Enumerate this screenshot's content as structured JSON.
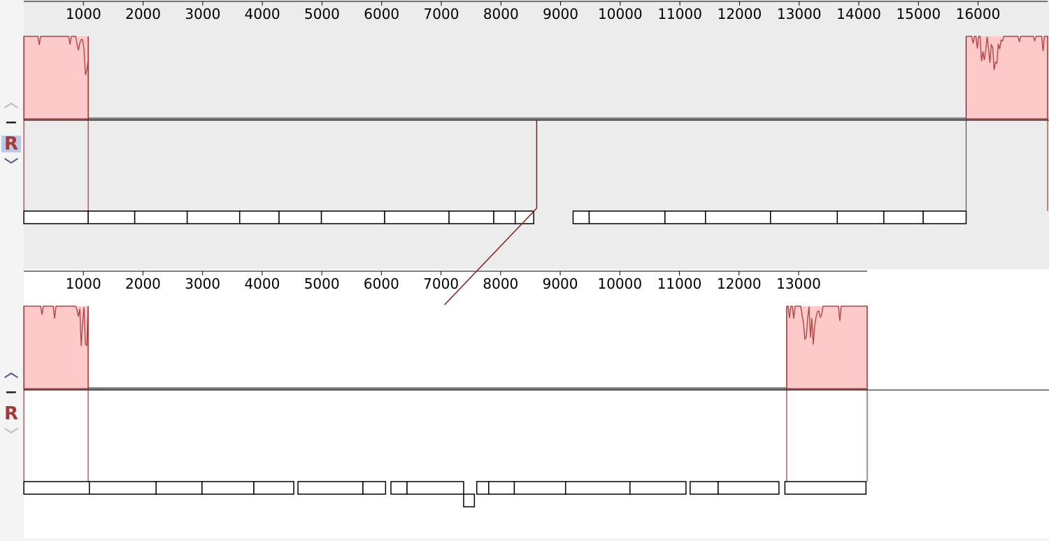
{
  "colors": {
    "profile_fill": "#fdc9c9",
    "profile_stroke": "#b04848",
    "connector": "#8b1a1a",
    "backbone": "#808080",
    "selected_bg": "#ececec",
    "unselected_bg": "#ffffff"
  },
  "controls": {
    "top": {
      "up_icon": "chevron-up-icon",
      "minus_label": "−",
      "ref_label": "R",
      "down_icon": "chevron-down-icon",
      "ref_selected": true
    },
    "bottom": {
      "up_icon": "chevron-up-icon",
      "minus_label": "−",
      "ref_label": "R",
      "down_icon": "chevron-down-icon",
      "ref_selected": false
    }
  },
  "genomes": [
    {
      "id": "genome-1",
      "length": 17166,
      "ticks": [
        "1000",
        "2000",
        "3000",
        "4000",
        "5000",
        "6000",
        "7000",
        "8000",
        "9000",
        "10000",
        "11000",
        "12000",
        "13000",
        "14000",
        "15000",
        "16000"
      ],
      "tick_values": [
        1000,
        2000,
        3000,
        4000,
        5000,
        6000,
        7000,
        8000,
        9000,
        10000,
        11000,
        12000,
        13000,
        14000,
        15000,
        16000
      ],
      "lcb_blocks": [
        {
          "start": 1,
          "end": 1080
        },
        {
          "start": 15800,
          "end": 17166
        }
      ],
      "gene_rows": [
        [
          [
            1,
            1080
          ],
          [
            1080,
            1860
          ],
          [
            1860,
            2740
          ],
          [
            2740,
            3620
          ],
          [
            3620,
            4280
          ],
          [
            4280,
            4990
          ],
          [
            4990,
            6050
          ],
          [
            6050,
            7130
          ],
          [
            7130,
            7880
          ],
          [
            7880,
            8240
          ],
          [
            8240,
            8550
          ],
          [
            9210,
            9480
          ],
          [
            9480,
            10750
          ],
          [
            10750,
            11430
          ],
          [
            11430,
            12520
          ],
          [
            12520,
            13640
          ],
          [
            13640,
            14420
          ],
          [
            14420,
            15080
          ],
          [
            15080,
            15800
          ]
        ]
      ],
      "below_genes": []
    },
    {
      "id": "genome-2",
      "length": 14150,
      "ticks": [
        "1000",
        "2000",
        "3000",
        "4000",
        "5000",
        "6000",
        "7000",
        "8000",
        "9000",
        "10000",
        "11000",
        "12000",
        "13000"
      ],
      "tick_values": [
        1000,
        2000,
        3000,
        4000,
        5000,
        6000,
        7000,
        8000,
        9000,
        10000,
        11000,
        12000,
        13000
      ],
      "lcb_blocks": [
        {
          "start": 1,
          "end": 1080
        },
        {
          "start": 12800,
          "end": 14150
        }
      ],
      "gene_rows": [
        [
          [
            1,
            1100
          ],
          [
            1100,
            2220
          ],
          [
            2220,
            2990
          ],
          [
            2990,
            3860
          ],
          [
            3860,
            4530
          ],
          [
            4600,
            5690
          ],
          [
            5690,
            6070
          ],
          [
            6160,
            6430
          ],
          [
            6430,
            7380
          ],
          [
            7600,
            7800
          ],
          [
            7800,
            8230
          ],
          [
            8230,
            9090
          ],
          [
            9090,
            10170
          ],
          [
            10170,
            11110
          ],
          [
            11180,
            11650
          ],
          [
            11650,
            12670
          ],
          [
            12770,
            14130
          ]
        ]
      ],
      "below_genes": [
        [
          7380,
          7560
        ]
      ]
    }
  ],
  "connector": {
    "from_genome": 0,
    "from_pos": 8600,
    "to_genome": 1,
    "to_pos": 7060
  }
}
